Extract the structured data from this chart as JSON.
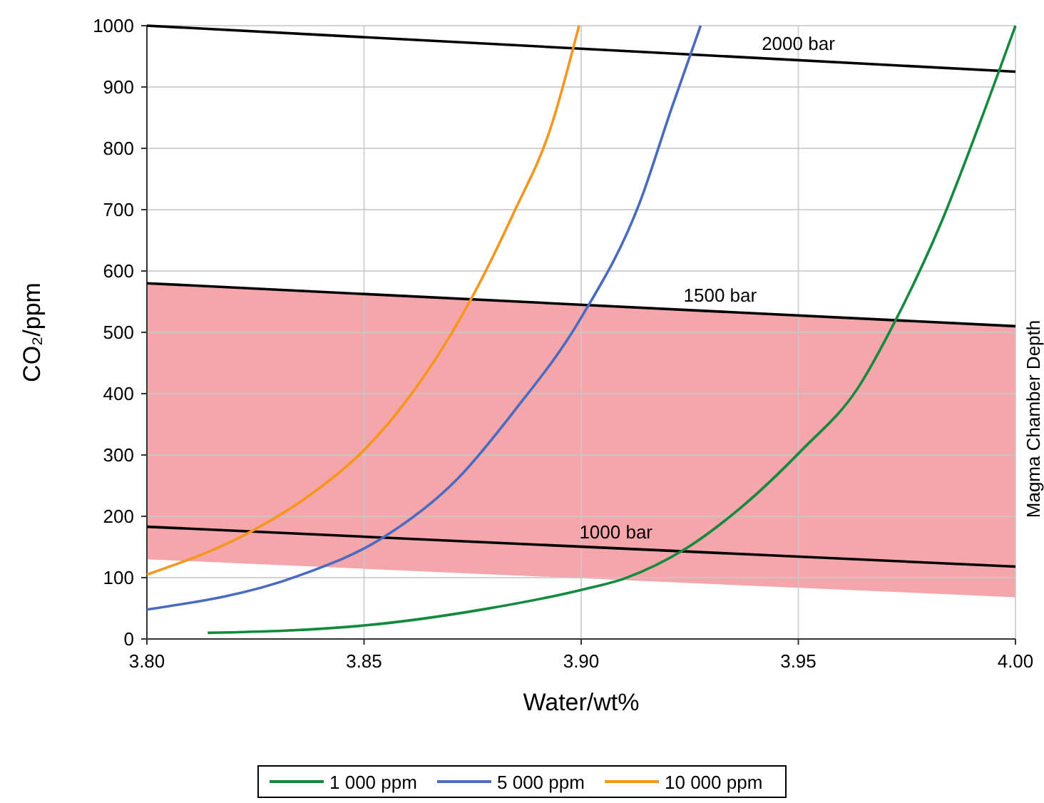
{
  "chart_data": {
    "type": "line",
    "xlabel": "Water/wt%",
    "ylabel": "CO₂/ppm",
    "xlim": [
      3.8,
      4.0
    ],
    "xticks": [
      {
        "value": 3.8,
        "label": "3.80"
      },
      {
        "value": 3.85,
        "label": "3.85"
      },
      {
        "value": 3.9,
        "label": "3.90"
      },
      {
        "value": 3.95,
        "label": "3.95"
      },
      {
        "value": 4.0,
        "label": "4.00"
      }
    ],
    "ylim": [
      0,
      1000
    ],
    "yticks": [
      0,
      100,
      200,
      300,
      400,
      500,
      600,
      700,
      800,
      900,
      1000
    ],
    "grid": true,
    "legend": "bottom",
    "series": [
      {
        "name": "Magma Chamber Depth",
        "color": "#000000",
        "x": [
          3.8,
          4.0
        ],
        "values": [
          580,
          510
        ],
        "lower": [
          130,
          68
        ],
        "upper": [
          580,
          510
        ]
      },
      {
        "color": "#000000",
        "x": [
          3.8,
          4.0
        ],
        "values": [
          1000,
          925
        ]
      },
      {
        "color": "#000000",
        "x": [
          3.8,
          4.0
        ],
        "values": [
          183,
          118
        ]
      },
      {
        "name": "1 000 ppm",
        "color": "#138a3e",
        "x": [
          3.814,
          3.85,
          3.878,
          3.9,
          3.9101,
          3.924,
          3.9369,
          3.9508,
          3.9636,
          3.9722,
          3.9829,
          3.9914,
          4.0
        ],
        "values": [
          10,
          22,
          49,
          80,
          99,
          147,
          215,
          308,
          408,
          517,
          679,
          834,
          1000
        ]
      },
      {
        "name": "5 000 ppm",
        "color": "#4a6cc0",
        "x": [
          3.8,
          3.8349,
          3.8543,
          3.8715,
          3.8844,
          3.9,
          3.9134,
          3.9208,
          3.9275
        ],
        "values": [
          48,
          103,
          165,
          261,
          370,
          524,
          710,
          865,
          1000
        ]
      },
      {
        "name": "10 000 ppm",
        "color": "#f7961e",
        "x": [
          3.8,
          3.8242,
          3.8382,
          3.85,
          3.8618,
          3.8747,
          3.8844,
          3.893,
          3.8995
        ],
        "values": [
          105,
          176,
          238,
          308,
          408,
          555,
          694,
          834,
          1000
        ]
      }
    ],
    "annotations": [
      {
        "text": "2000 bar",
        "x": 3.95,
        "y": 944
      },
      {
        "text": "1500 bar",
        "x": 3.932,
        "y": 534
      },
      {
        "text": "1000 bar",
        "x": 3.908,
        "y": 148
      }
    ]
  }
}
